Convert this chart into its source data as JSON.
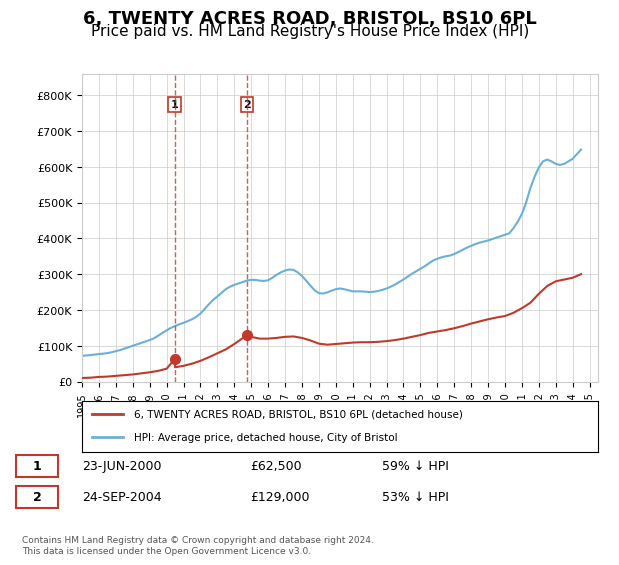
{
  "title": "6, TWENTY ACRES ROAD, BRISTOL, BS10 6PL",
  "subtitle": "Price paid vs. HM Land Registry's House Price Index (HPI)",
  "title_fontsize": 13,
  "subtitle_fontsize": 11,
  "hpi_color": "#6ab0d8",
  "price_color": "#c0392b",
  "marker_color": "#c0392b",
  "background_color": "#ffffff",
  "grid_color": "#cccccc",
  "ylim": [
    0,
    860000
  ],
  "yticks": [
    0,
    100000,
    200000,
    300000,
    400000,
    500000,
    600000,
    700000,
    800000
  ],
  "ytick_labels": [
    "£0",
    "£100K",
    "£200K",
    "£300K",
    "£400K",
    "£500K",
    "£600K",
    "£700K",
    "£800K"
  ],
  "xmin": 1995.0,
  "xmax": 2025.5,
  "transactions": [
    {
      "label": "1",
      "year": 2000.47,
      "price": 62500,
      "date": "23-JUN-2000",
      "pct": "59% ↓ HPI"
    },
    {
      "label": "2",
      "year": 2004.73,
      "price": 129000,
      "date": "24-SEP-2004",
      "pct": "53% ↓ HPI"
    }
  ],
  "legend_entries": [
    "6, TWENTY ACRES ROAD, BRISTOL, BS10 6PL (detached house)",
    "HPI: Average price, detached house, City of Bristol"
  ],
  "footer": "Contains HM Land Registry data © Crown copyright and database right 2024.\nThis data is licensed under the Open Government Licence v3.0.",
  "hpi_x": [
    1995.0,
    1995.25,
    1995.5,
    1995.75,
    1996.0,
    1996.25,
    1996.5,
    1996.75,
    1997.0,
    1997.25,
    1997.5,
    1997.75,
    1998.0,
    1998.25,
    1998.5,
    1998.75,
    1999.0,
    1999.25,
    1999.5,
    1999.75,
    2000.0,
    2000.25,
    2000.5,
    2000.75,
    2001.0,
    2001.25,
    2001.5,
    2001.75,
    2002.0,
    2002.25,
    2002.5,
    2002.75,
    2003.0,
    2003.25,
    2003.5,
    2003.75,
    2004.0,
    2004.25,
    2004.5,
    2004.75,
    2005.0,
    2005.25,
    2005.5,
    2005.75,
    2006.0,
    2006.25,
    2006.5,
    2006.75,
    2007.0,
    2007.25,
    2007.5,
    2007.75,
    2008.0,
    2008.25,
    2008.5,
    2008.75,
    2009.0,
    2009.25,
    2009.5,
    2009.75,
    2010.0,
    2010.25,
    2010.5,
    2010.75,
    2011.0,
    2011.25,
    2011.5,
    2011.75,
    2012.0,
    2012.25,
    2012.5,
    2012.75,
    2013.0,
    2013.25,
    2013.5,
    2013.75,
    2014.0,
    2014.25,
    2014.5,
    2014.75,
    2015.0,
    2015.25,
    2015.5,
    2015.75,
    2016.0,
    2016.25,
    2016.5,
    2016.75,
    2017.0,
    2017.25,
    2017.5,
    2017.75,
    2018.0,
    2018.25,
    2018.5,
    2018.75,
    2019.0,
    2019.25,
    2019.5,
    2019.75,
    2020.0,
    2020.25,
    2020.5,
    2020.75,
    2021.0,
    2021.25,
    2021.5,
    2021.75,
    2022.0,
    2022.25,
    2022.5,
    2022.75,
    2023.0,
    2023.25,
    2023.5,
    2023.75,
    2024.0,
    2024.25,
    2024.5
  ],
  "hpi_y": [
    72000,
    73000,
    74000,
    75500,
    77000,
    78000,
    79500,
    82000,
    85000,
    88000,
    92000,
    96000,
    100000,
    104000,
    108000,
    112000,
    116000,
    121000,
    128000,
    136000,
    143000,
    150000,
    155000,
    160000,
    164000,
    169000,
    174000,
    181000,
    190000,
    203000,
    216000,
    228000,
    238000,
    248000,
    258000,
    265000,
    270000,
    274000,
    278000,
    282000,
    284000,
    284000,
    282000,
    281000,
    283000,
    290000,
    298000,
    305000,
    310000,
    313000,
    312000,
    305000,
    295000,
    282000,
    268000,
    255000,
    247000,
    246000,
    249000,
    254000,
    258000,
    260000,
    258000,
    255000,
    252000,
    252000,
    252000,
    251000,
    250000,
    251000,
    253000,
    256000,
    260000,
    265000,
    271000,
    278000,
    285000,
    293000,
    301000,
    308000,
    315000,
    322000,
    330000,
    338000,
    343000,
    347000,
    350000,
    352000,
    356000,
    362000,
    368000,
    374000,
    379000,
    384000,
    388000,
    391000,
    394000,
    398000,
    402000,
    406000,
    410000,
    414000,
    428000,
    446000,
    468000,
    500000,
    540000,
    572000,
    598000,
    615000,
    620000,
    615000,
    608000,
    605000,
    608000,
    615000,
    622000,
    635000,
    648000
  ],
  "price_x": [
    1995.0,
    1995.5,
    1996.0,
    1996.5,
    1997.0,
    1997.5,
    1998.0,
    1998.5,
    1999.0,
    1999.5,
    2000.0,
    2000.47,
    2000.5,
    2001.0,
    2001.5,
    2002.0,
    2002.5,
    2003.0,
    2003.5,
    2004.0,
    2004.73,
    2005.0,
    2005.5,
    2006.0,
    2006.5,
    2007.0,
    2007.5,
    2008.0,
    2008.5,
    2009.0,
    2009.5,
    2010.0,
    2010.5,
    2011.0,
    2011.5,
    2012.0,
    2012.5,
    2013.0,
    2013.5,
    2014.0,
    2014.5,
    2015.0,
    2015.5,
    2016.0,
    2016.5,
    2017.0,
    2017.5,
    2018.0,
    2018.5,
    2019.0,
    2019.5,
    2020.0,
    2020.5,
    2021.0,
    2021.5,
    2022.0,
    2022.5,
    2023.0,
    2023.5,
    2024.0,
    2024.5
  ],
  "price_y": [
    10000,
    11000,
    13000,
    14000,
    16000,
    18000,
    20000,
    23000,
    26000,
    30000,
    36000,
    62500,
    40000,
    44000,
    50000,
    58000,
    68000,
    79000,
    90000,
    105000,
    129000,
    125000,
    120000,
    120000,
    122000,
    125000,
    126000,
    122000,
    115000,
    106000,
    103000,
    105000,
    107000,
    109000,
    110000,
    110000,
    111000,
    113000,
    116000,
    120000,
    125000,
    130000,
    136000,
    140000,
    144000,
    149000,
    155000,
    162000,
    168000,
    174000,
    179000,
    183000,
    192000,
    205000,
    220000,
    245000,
    267000,
    280000,
    285000,
    290000,
    300000
  ]
}
